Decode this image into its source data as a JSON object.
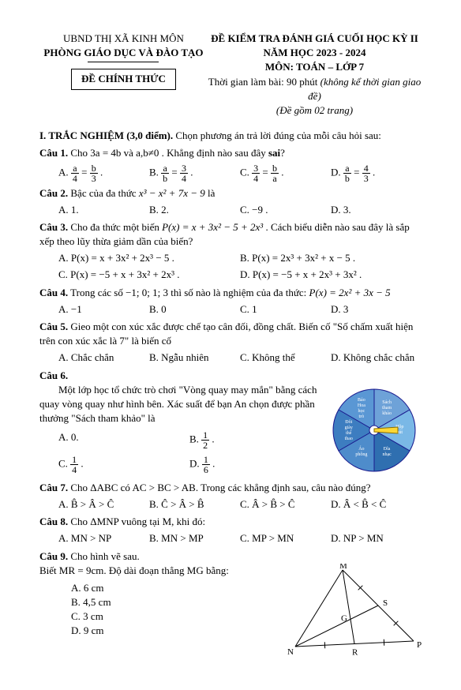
{
  "header": {
    "ubnd": "UBND THỊ XÃ KINH MÔN",
    "phong": "PHÒNG GIÁO DỤC VÀ ĐÀO TẠO",
    "exam_title": "ĐỀ KIỂM TRA ĐÁNH GIÁ CUỐI HỌC KỲ II",
    "year": "NĂM HỌC 2023 - 2024",
    "subject": "MÔN: TOÁN – LỚP 7",
    "chinh_thuc": "ĐỀ CHÍNH THỨC",
    "time": "Thời gian làm bài: 90 phút ",
    "time_note": "(không kể thời gian giao đề)",
    "pages": "(Đề gồm 02 trang)"
  },
  "section1": {
    "title": "I. TRẮC NGHIỆM (3,0 điểm).",
    "instr": " Chọn phương án trả lời đúng của mỗi câu hỏi sau:"
  },
  "q1": {
    "label": "Câu 1.",
    "text": " Cho 3a = 4b và a,b≠0 . Khẳng định nào sau đây ",
    "sai": "sai",
    "qmark": "?"
  },
  "q2": {
    "label": "Câu 2.",
    "text": " Bậc của đa thức ",
    "poly": "x³ − x² + 7x − 9",
    "after": " là",
    "a": "A. 1.",
    "b": "B. 2.",
    "c": "C. −9 .",
    "d": "D. 3."
  },
  "q3": {
    "label": "Câu 3.",
    "text1": " Cho đa thức một biến ",
    "poly": "P(x) = x + 3x² − 5 + 2x³",
    "text2": " . Cách biểu diễn nào sau đây là sắp xếp theo lũy thừa giảm dần của biến?",
    "a": "A.  P(x) = x + 3x² + 2x³ − 5 .",
    "b": "B.  P(x) = 2x³ + 3x² + x − 5 .",
    "c": "C.  P(x) = −5 + x + 3x² + 2x³ .",
    "d": "D.  P(x) = −5 + x + 2x³ + 3x² ."
  },
  "q4": {
    "label": "Câu 4.",
    "text": " Trong các số −1; 0; 1; 3 thì số nào là nghiệm của đa thức: ",
    "poly": "P(x) = 2x² + 3x − 5",
    "a": "A. −1",
    "b": "B. 0",
    "c": "C. 1",
    "d": "D. 3"
  },
  "q5": {
    "label": "Câu 5.",
    "text": " Gieo một con xúc xắc được chế tạo cân đối, đồng chất. Biến cố \"Số chấm xuất hiện trên con xúc xắc là 7\" là biến cố",
    "a": "A. Chắc chắn",
    "b": "B. Ngẫu nhiên",
    "c": "C. Không thể",
    "d": "D. Không chắc chắn"
  },
  "q6": {
    "label": "Câu 6.",
    "text": "Một lớp học tổ chức trò chơi \"Vòng quay may mắn\" bằng cách quay vòng quay như hình bên. Xác suất để bạn An chọn được phần thưởng \"Sách tham khảo\" là",
    "a": "A. 0.",
    "c": "C. ",
    "d": "D. "
  },
  "spinner": {
    "slices": [
      {
        "label": "Sách tham khảo",
        "color": "#6ea2d8"
      },
      {
        "label": "Hộp bút",
        "color": "#7ab8e6"
      },
      {
        "label": "Đĩa nhạc",
        "color": "#2f6fb0"
      },
      {
        "label": "Áo phông",
        "color": "#4e8ccb"
      },
      {
        "label": "Đôi giày thể thao",
        "color": "#3d7dc0"
      },
      {
        "label": "Báo Hoa học trò",
        "color": "#5a97d4"
      }
    ],
    "border": "#1b1b8f",
    "center_fill": "#ffffff",
    "pointer_fill": "#fdd835"
  },
  "q7": {
    "label": "Câu 7.",
    "text": " Cho ΔABC có AC > BC > AB. Trong các khẳng định sau, câu nào đúng?",
    "a": "A.  B̂ > Â > Ĉ",
    "b": "B.  Ĉ > Â > B̂",
    "c": "C.  Â > B̂ > Ĉ",
    "d": "D.  Â < B̂ < Ĉ"
  },
  "q8": {
    "label": "Câu 8.",
    "text": " Cho ΔMNP vuông tại M, khi đó:",
    "a": "A. MN > NP",
    "b": "B. MN > MP",
    "c": "C. MP > MN",
    "d": "D. NP > MN"
  },
  "q9": {
    "label": "Câu 9.",
    "text": " Cho hình vẽ sau.",
    "line": "Biết MR = 9cm. Độ dài đoạn thẳng MG bằng:",
    "a": "A. 6 cm",
    "b": "B. 4,5 cm",
    "c": "C. 3 cm",
    "d": "D. 9 cm"
  },
  "fig9": {
    "M": "M",
    "N": "N",
    "P": "P",
    "G": "G",
    "S": "S",
    "R": "R",
    "line_color": "#000"
  }
}
